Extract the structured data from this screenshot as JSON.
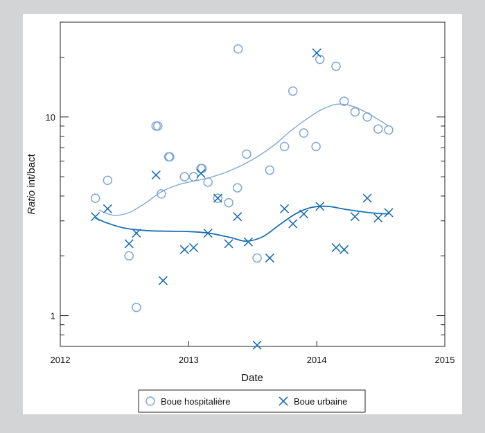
{
  "chart_data": {
    "type": "scatter",
    "title": "",
    "xlabel": "Date",
    "ylabel_italic": "Ratio",
    "ylabel_rest": " int/bact",
    "x_scale": "time (years)",
    "y_scale": "log",
    "xlim": [
      "2012-01-01",
      "2015-01-01"
    ],
    "ylim": [
      0.7,
      30
    ],
    "x_ticks": [
      {
        "value": "2012-01-01",
        "label": "2012"
      },
      {
        "value": "2013-01-01",
        "label": "2013"
      },
      {
        "value": "2014-01-01",
        "label": "2014"
      },
      {
        "value": "2015-01-01",
        "label": "2015"
      }
    ],
    "y_ticks": [
      {
        "value": 1,
        "label": "1"
      },
      {
        "value": 10,
        "label": "10"
      }
    ],
    "grid": false,
    "legend_position": "bottom-center",
    "series": [
      {
        "name": "Boue hospitalière",
        "marker": "circle",
        "color": "#7fa7d6",
        "points": [
          {
            "x": "2012-04-10",
            "y": 3.9
          },
          {
            "x": "2012-05-15",
            "y": 4.8
          },
          {
            "x": "2012-07-15",
            "y": 2.0
          },
          {
            "x": "2012-08-05",
            "y": 1.1
          },
          {
            "x": "2012-09-30",
            "y": 9.0
          },
          {
            "x": "2012-10-05",
            "y": 9.0
          },
          {
            "x": "2012-10-15",
            "y": 4.1
          },
          {
            "x": "2012-11-05",
            "y": 6.3
          },
          {
            "x": "2012-11-08",
            "y": 6.3
          },
          {
            "x": "2012-12-20",
            "y": 5.0
          },
          {
            "x": "2013-01-15",
            "y": 5.0
          },
          {
            "x": "2013-02-05",
            "y": 5.5
          },
          {
            "x": "2013-02-08",
            "y": 5.5
          },
          {
            "x": "2013-02-25",
            "y": 4.7
          },
          {
            "x": "2013-03-25",
            "y": 3.9
          },
          {
            "x": "2013-04-25",
            "y": 3.7
          },
          {
            "x": "2013-05-20",
            "y": 4.4
          },
          {
            "x": "2013-05-22",
            "y": 22.0
          },
          {
            "x": "2013-06-15",
            "y": 6.5
          },
          {
            "x": "2013-07-15",
            "y": 1.95
          },
          {
            "x": "2013-08-20",
            "y": 5.4
          },
          {
            "x": "2013-10-01",
            "y": 7.1
          },
          {
            "x": "2013-10-25",
            "y": 13.5
          },
          {
            "x": "2013-11-25",
            "y": 8.3
          },
          {
            "x": "2013-12-30",
            "y": 7.1
          },
          {
            "x": "2014-01-10",
            "y": 19.5
          },
          {
            "x": "2014-02-25",
            "y": 18.0
          },
          {
            "x": "2014-03-20",
            "y": 12.0
          },
          {
            "x": "2014-04-20",
            "y": 10.6
          },
          {
            "x": "2014-05-25",
            "y": 10.0
          },
          {
            "x": "2014-06-25",
            "y": 8.7
          },
          {
            "x": "2014-07-25",
            "y": 8.6
          }
        ],
        "trend": [
          {
            "x": "2012-04-20",
            "y": 3.4
          },
          {
            "x": "2012-06-01",
            "y": 3.2
          },
          {
            "x": "2012-07-15",
            "y": 3.3
          },
          {
            "x": "2012-09-01",
            "y": 3.7
          },
          {
            "x": "2012-10-15",
            "y": 4.2
          },
          {
            "x": "2012-12-01",
            "y": 4.55
          },
          {
            "x": "2013-01-15",
            "y": 4.75
          },
          {
            "x": "2013-03-01",
            "y": 4.95
          },
          {
            "x": "2013-04-15",
            "y": 5.25
          },
          {
            "x": "2013-06-01",
            "y": 5.7
          },
          {
            "x": "2013-07-15",
            "y": 6.3
          },
          {
            "x": "2013-09-01",
            "y": 7.2
          },
          {
            "x": "2013-10-15",
            "y": 8.4
          },
          {
            "x": "2013-12-01",
            "y": 9.7
          },
          {
            "x": "2014-01-15",
            "y": 10.9
          },
          {
            "x": "2014-03-01",
            "y": 11.6
          },
          {
            "x": "2014-04-15",
            "y": 11.3
          },
          {
            "x": "2014-06-01",
            "y": 10.3
          },
          {
            "x": "2014-07-25",
            "y": 9.0
          }
        ]
      },
      {
        "name": "Boue urbaine",
        "marker": "cross",
        "color": "#1a6fb5",
        "points": [
          {
            "x": "2012-04-10",
            "y": 3.15
          },
          {
            "x": "2012-05-15",
            "y": 3.45
          },
          {
            "x": "2012-07-15",
            "y": 2.3
          },
          {
            "x": "2012-08-05",
            "y": 2.6
          },
          {
            "x": "2012-09-30",
            "y": 5.1
          },
          {
            "x": "2012-10-20",
            "y": 1.5
          },
          {
            "x": "2012-12-20",
            "y": 2.15
          },
          {
            "x": "2013-01-15",
            "y": 2.2
          },
          {
            "x": "2013-02-05",
            "y": 5.2
          },
          {
            "x": "2013-02-25",
            "y": 2.6
          },
          {
            "x": "2013-03-25",
            "y": 3.9
          },
          {
            "x": "2013-04-25",
            "y": 2.3
          },
          {
            "x": "2013-05-20",
            "y": 3.15
          },
          {
            "x": "2013-06-20",
            "y": 2.35
          },
          {
            "x": "2013-07-15",
            "y": 0.71
          },
          {
            "x": "2013-08-20",
            "y": 1.95
          },
          {
            "x": "2013-10-01",
            "y": 3.45
          },
          {
            "x": "2013-10-25",
            "y": 2.9
          },
          {
            "x": "2013-11-25",
            "y": 3.25
          },
          {
            "x": "2014-01-01",
            "y": 21.0
          },
          {
            "x": "2014-01-10",
            "y": 3.55
          },
          {
            "x": "2014-02-25",
            "y": 2.2
          },
          {
            "x": "2014-03-20",
            "y": 2.15
          },
          {
            "x": "2014-04-20",
            "y": 3.15
          },
          {
            "x": "2014-05-25",
            "y": 3.9
          },
          {
            "x": "2014-06-25",
            "y": 3.1
          },
          {
            "x": "2014-07-25",
            "y": 3.3
          }
        ],
        "trend": [
          {
            "x": "2012-04-10",
            "y": 3.1
          },
          {
            "x": "2012-05-15",
            "y": 2.92
          },
          {
            "x": "2012-07-01",
            "y": 2.76
          },
          {
            "x": "2012-09-01",
            "y": 2.68
          },
          {
            "x": "2012-11-01",
            "y": 2.66
          },
          {
            "x": "2013-01-01",
            "y": 2.65
          },
          {
            "x": "2013-03-01",
            "y": 2.6
          },
          {
            "x": "2013-05-01",
            "y": 2.47
          },
          {
            "x": "2013-06-15",
            "y": 2.37
          },
          {
            "x": "2013-08-01",
            "y": 2.5
          },
          {
            "x": "2013-09-15",
            "y": 2.85
          },
          {
            "x": "2013-11-01",
            "y": 3.25
          },
          {
            "x": "2013-12-15",
            "y": 3.5
          },
          {
            "x": "2014-02-01",
            "y": 3.55
          },
          {
            "x": "2014-03-15",
            "y": 3.45
          },
          {
            "x": "2014-05-01",
            "y": 3.35
          },
          {
            "x": "2014-06-15",
            "y": 3.28
          },
          {
            "x": "2014-07-25",
            "y": 3.25
          }
        ]
      }
    ]
  },
  "legend": {
    "items": [
      {
        "label": "Boue hospitalière"
      },
      {
        "label": "Boue urbaine"
      }
    ]
  }
}
